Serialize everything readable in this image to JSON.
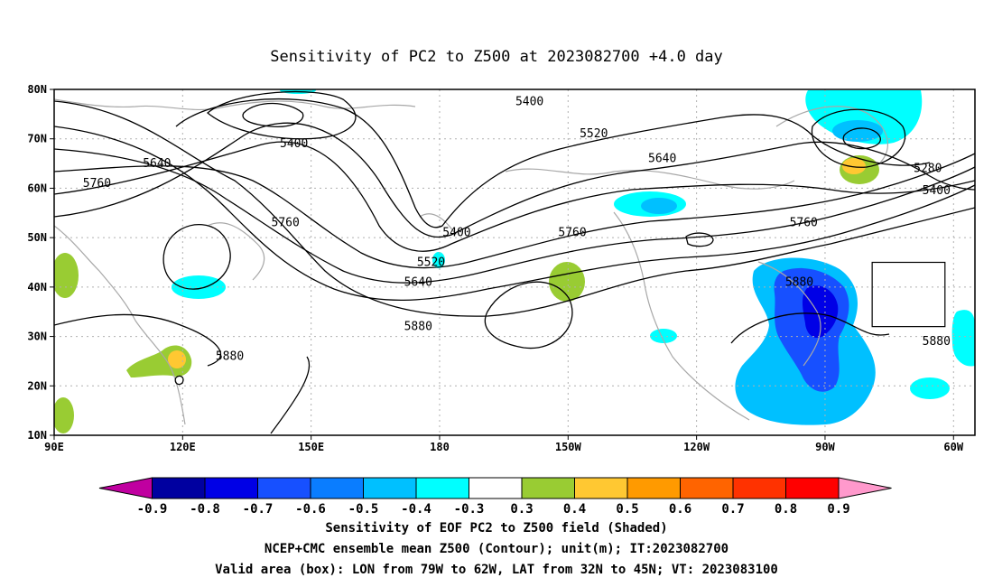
{
  "title": "Sensitivity of PC2 to Z500 at 2023082700 +4.0 day",
  "map": {
    "lon_range": [
      90,
      305
    ],
    "lat_range": [
      10,
      80
    ],
    "lat_ticks": [
      {
        "value": 80,
        "label": "80N"
      },
      {
        "value": 70,
        "label": "70N"
      },
      {
        "value": 60,
        "label": "60N"
      },
      {
        "value": 50,
        "label": "50N"
      },
      {
        "value": 40,
        "label": "40N"
      },
      {
        "value": 30,
        "label": "30N"
      },
      {
        "value": 20,
        "label": "20N"
      },
      {
        "value": 10,
        "label": "10N"
      }
    ],
    "lon_ticks": [
      {
        "value": 90,
        "label": "90E"
      },
      {
        "value": 120,
        "label": "120E"
      },
      {
        "value": 150,
        "label": "150E"
      },
      {
        "value": 180,
        "label": "180"
      },
      {
        "value": 210,
        "label": "150W"
      },
      {
        "value": 240,
        "label": "120W"
      },
      {
        "value": 270,
        "label": "90W"
      },
      {
        "value": 300,
        "label": "60W"
      }
    ],
    "valid_box": {
      "lon": [
        281,
        298
      ],
      "lat": [
        32,
        45
      ]
    },
    "contour_labels": [
      {
        "text": "5400",
        "lon": 201,
        "lat": 77.5
      },
      {
        "text": "5400",
        "lon": 146,
        "lat": 69
      },
      {
        "text": "5400",
        "lon": 184,
        "lat": 51
      },
      {
        "text": "5400",
        "lon": 296,
        "lat": 59.5
      },
      {
        "text": "5280",
        "lon": 294,
        "lat": 64
      },
      {
        "text": "5520",
        "lon": 216,
        "lat": 71
      },
      {
        "text": "5520",
        "lon": 178,
        "lat": 45
      },
      {
        "text": "5640",
        "lon": 114,
        "lat": 65
      },
      {
        "text": "5640",
        "lon": 232,
        "lat": 66
      },
      {
        "text": "5640",
        "lon": 175,
        "lat": 41
      },
      {
        "text": "5760",
        "lon": 100,
        "lat": 61
      },
      {
        "text": "5760",
        "lon": 144,
        "lat": 53
      },
      {
        "text": "5760",
        "lon": 211,
        "lat": 51
      },
      {
        "text": "5760",
        "lon": 265,
        "lat": 53
      },
      {
        "text": "5880",
        "lon": 175,
        "lat": 32
      },
      {
        "text": "5880",
        "lon": 131,
        "lat": 26
      },
      {
        "text": "5880",
        "lon": 264,
        "lat": 41
      },
      {
        "text": "5880",
        "lon": 296,
        "lat": 29
      }
    ]
  },
  "colorbar": {
    "labels": [
      "-0.9",
      "-0.8",
      "-0.7",
      "-0.6",
      "-0.5",
      "-0.4",
      "-0.3",
      "0.3",
      "0.4",
      "0.5",
      "0.6",
      "0.7",
      "0.8",
      "0.9"
    ],
    "colors": [
      "#c000a0",
      "#0000a0",
      "#0000e6",
      "#1750ff",
      "#0a7dff",
      "#00c0ff",
      "#00ffff",
      "#ffffff",
      "#99cc33",
      "#ffc832",
      "#ff9a00",
      "#ff6400",
      "#ff3200",
      "#ff0000",
      "#ff99cc"
    ]
  },
  "caption": [
    "Sensitivity of EOF PC2 to Z500 field (Shaded)",
    "NCEP+CMC ensemble mean Z500 (Contour); unit(m); IT:2023082700",
    "Valid area (box): LON from 79W to 62W, LAT from 32N to 45N; VT: 2023083100"
  ]
}
